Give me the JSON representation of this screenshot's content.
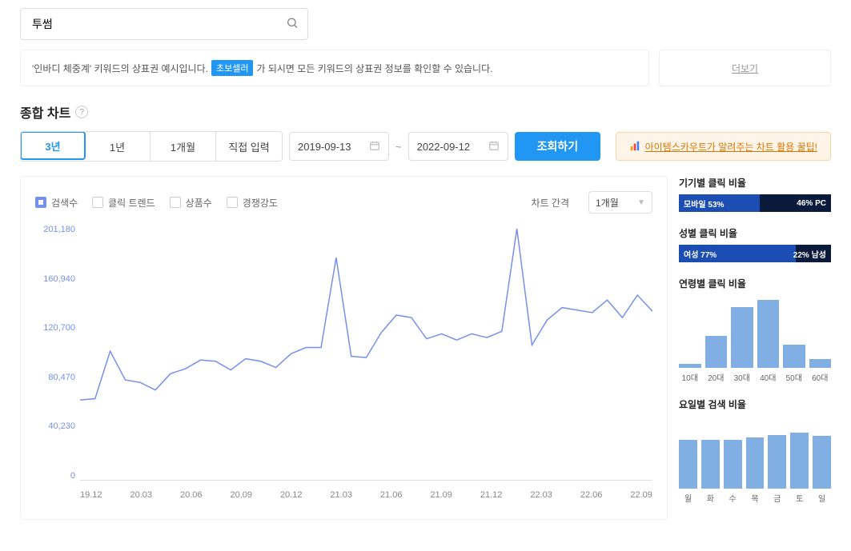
{
  "search": {
    "value": "투썸",
    "placeholder": ""
  },
  "info_banner": {
    "prefix": "'인바디 체중계' 키워드의 상표권 예시입니다.",
    "badge": "초보셀러",
    "suffix": "가 되시면 모든 키워드의 상표권 정보를 확인할 수 있습니다.",
    "more": "더보기"
  },
  "section": {
    "title": "종합 차트"
  },
  "range_buttons": [
    "3년",
    "1년",
    "1개월",
    "직접 입력"
  ],
  "range_active_index": 0,
  "date_from": "2019-09-13",
  "date_to": "2022-09-12",
  "submit_label": "조회하기",
  "tip_text": "아이템스카우트가 알려주는 차트 활용 꿀팁!",
  "legend": {
    "items": [
      {
        "label": "검색수",
        "checked": true
      },
      {
        "label": "클릭 트렌드",
        "checked": false
      },
      {
        "label": "상품수",
        "checked": false
      },
      {
        "label": "경쟁강도",
        "checked": false
      }
    ],
    "interval_label": "차트 간격",
    "interval_value": "1개월"
  },
  "linechart": {
    "type": "line",
    "line_color": "#7690ec",
    "line_width": 1.5,
    "ylim": [
      0,
      201180
    ],
    "y_ticks": [
      "201,180",
      "160,940",
      "120,700",
      "80,470",
      "40,230",
      "0"
    ],
    "x_ticks": [
      "19.12",
      "20.03",
      "20.06",
      "20.09",
      "20.12",
      "21.03",
      "21.06",
      "21.09",
      "21.12",
      "22.03",
      "22.06",
      "22.09"
    ],
    "values": [
      64000,
      65000,
      103000,
      80000,
      78000,
      72000,
      85000,
      89000,
      96000,
      95000,
      88000,
      97000,
      95000,
      90000,
      101000,
      106000,
      106000,
      178000,
      99000,
      98000,
      118000,
      132000,
      130000,
      113000,
      117000,
      112000,
      117000,
      114000,
      119000,
      201180,
      108000,
      128000,
      138000,
      136000,
      134000,
      144000,
      130000,
      148000,
      135000
    ]
  },
  "side": {
    "device": {
      "title": "기기별 클릭 비율",
      "left_label": "모바일 53%",
      "left_pct": 53,
      "right_label": "46% PC",
      "left_color": "#1b4db3",
      "right_color": "#0a1a3a"
    },
    "gender": {
      "title": "성별 클릭 비율",
      "left_label": "여성 77%",
      "left_pct": 77,
      "right_label": "22% 남성",
      "left_color": "#1b4db3",
      "right_color": "#0a1a3a"
    },
    "age": {
      "title": "연령별 클릭 비율",
      "labels": [
        "10대",
        "20대",
        "30대",
        "40대",
        "50대",
        "60대"
      ],
      "values": [
        6,
        45,
        85,
        95,
        32,
        12
      ],
      "bar_color": "#81aee3",
      "max": 100
    },
    "weekday": {
      "title": "요일별 검색 비율",
      "labels": [
        "월",
        "화",
        "수",
        "목",
        "금",
        "토",
        "일"
      ],
      "values": [
        68,
        68,
        68,
        71,
        74,
        78,
        73
      ],
      "bar_color": "#81aee3",
      "max": 100
    }
  }
}
